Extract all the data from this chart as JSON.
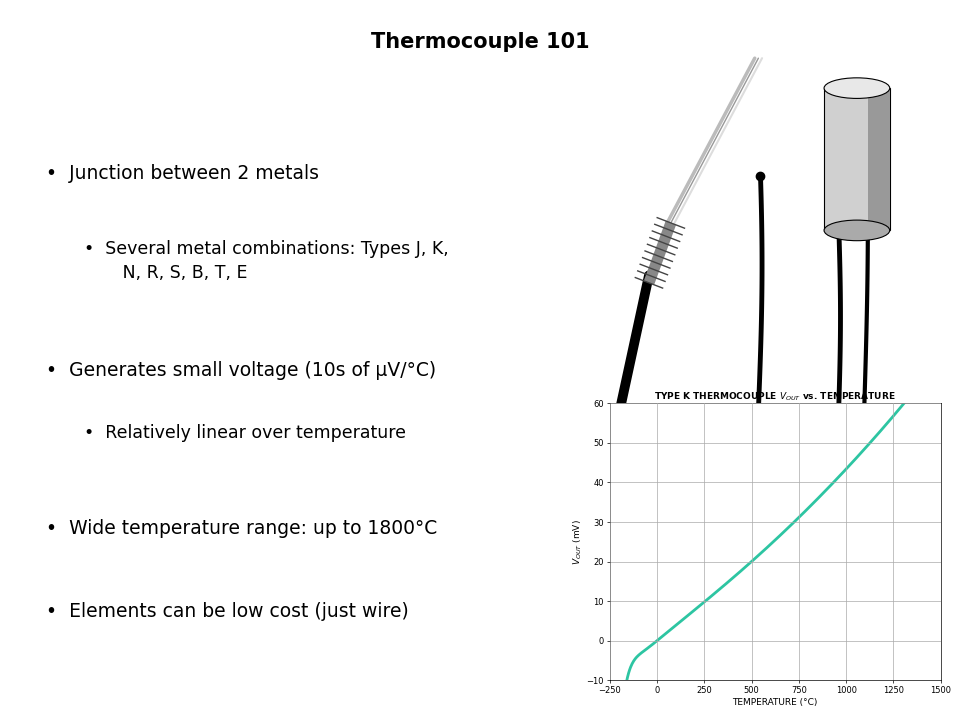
{
  "title": "Thermocouple 101",
  "title_fontsize": 15,
  "background_color": "#ffffff",
  "bullet_points": [
    {
      "level": 1,
      "text": "Junction between 2 metals"
    },
    {
      "level": 2,
      "text": "Several metal combinations: Types J, K,\n       N, R, S, B, T, E"
    },
    {
      "level": 1,
      "text": "Generates small voltage (10s of μV/°C)"
    },
    {
      "level": 2,
      "text": "Relatively linear over temperature"
    },
    {
      "level": 1,
      "text": "Wide temperature range: up to 1800°C"
    },
    {
      "level": 1,
      "text": "Elements can be low cost (just wire)"
    }
  ],
  "bullet_fontsize": 13.5,
  "sub_bullet_fontsize": 12.5,
  "xlabel": "TEMPERATURE (°C)",
  "ylabel_latex": "$V_{OUT}$ (mV)",
  "xlabel_fontsize": 6.5,
  "ylabel_fontsize": 6.5,
  "xlim": [
    -250,
    1500
  ],
  "ylim": [
    -10,
    60
  ],
  "xticks": [
    -250,
    0,
    250,
    500,
    750,
    1000,
    1250,
    1500
  ],
  "yticks": [
    -10,
    0,
    10,
    20,
    30,
    40,
    50,
    60
  ],
  "line_color": "#2dc5a2",
  "line_width": 2.0,
  "grid_color": "#aaaaaa",
  "grid_linewidth": 0.5,
  "tick_fontsize": 6.0,
  "chart_title_fontsize": 6.5
}
